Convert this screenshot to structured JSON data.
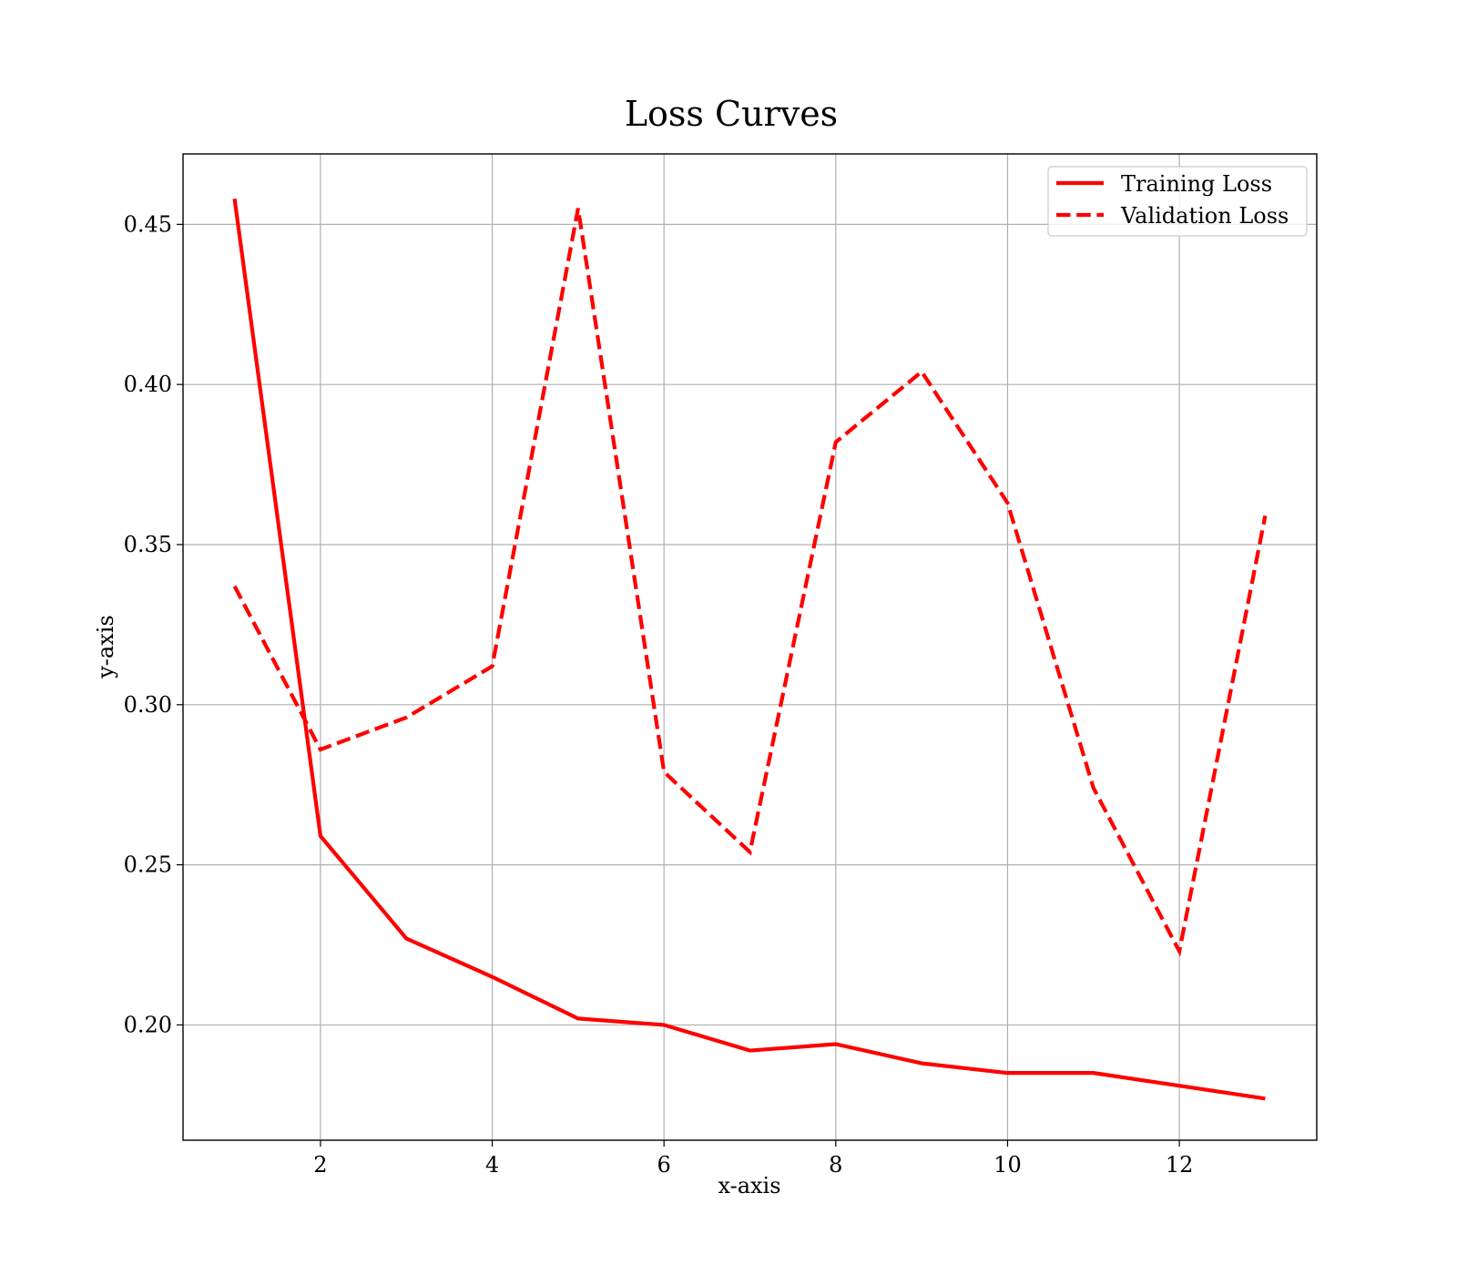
{
  "chart_data": {
    "type": "line",
    "title": "Loss Curves",
    "xlabel": "x-axis",
    "ylabel": "y-axis",
    "x": [
      1,
      2,
      3,
      4,
      5,
      6,
      7,
      8,
      9,
      10,
      11,
      12,
      13
    ],
    "xlim": [
      0.4,
      13.6
    ],
    "ylim": [
      0.164,
      0.472
    ],
    "xticks": [
      2,
      4,
      6,
      8,
      10,
      12
    ],
    "xtick_labels": [
      "2",
      "4",
      "6",
      "8",
      "10",
      "12"
    ],
    "yticks": [
      0.2,
      0.25,
      0.3,
      0.35,
      0.4,
      0.45
    ],
    "ytick_labels": [
      "0.20",
      "0.25",
      "0.30",
      "0.35",
      "0.40",
      "0.45"
    ],
    "grid": true,
    "legend_position": "top-right",
    "series": [
      {
        "name": "Training Loss",
        "color": "#ff0000",
        "style": "solid",
        "values": [
          0.458,
          0.259,
          0.227,
          0.215,
          0.202,
          0.2,
          0.192,
          0.194,
          0.188,
          0.185,
          0.185,
          0.181,
          0.177
        ]
      },
      {
        "name": "Validation Loss",
        "color": "#ff0000",
        "style": "dashed",
        "values": [
          0.337,
          0.286,
          0.296,
          0.312,
          0.455,
          0.279,
          0.254,
          0.382,
          0.404,
          0.363,
          0.274,
          0.223,
          0.359
        ]
      }
    ]
  }
}
